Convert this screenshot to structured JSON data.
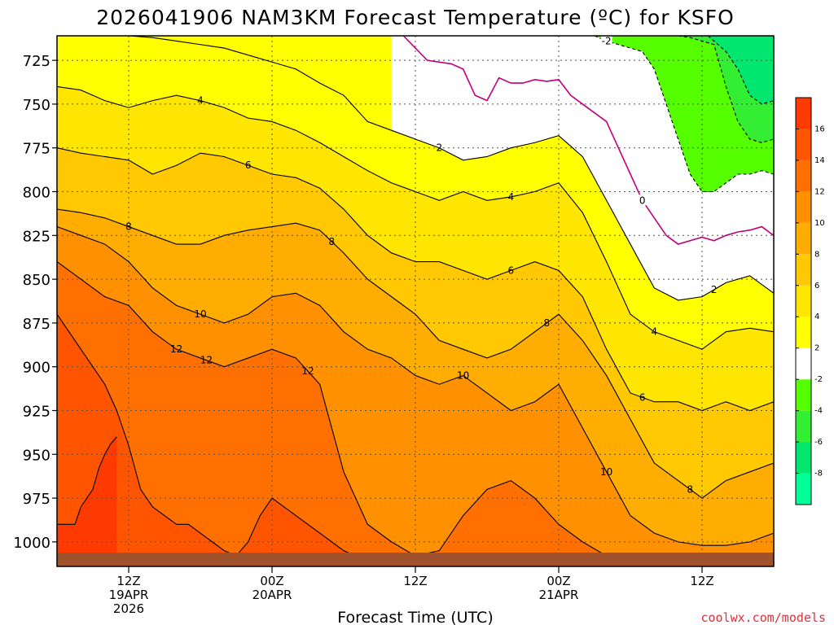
{
  "colors": {
    "band_m8": "#00ff99",
    "band_m6": "#00e66e",
    "band_m4": "#33ee33",
    "band_m2": "#55ff00",
    "band_0": "#ffffff",
    "band_2": "#ffff00",
    "band_4": "#ffe600",
    "band_6": "#ffc800",
    "band_8": "#ffad00",
    "band_10": "#ff9000",
    "band_12": "#ff7000",
    "band_14": "#ff5500",
    "band_16": "#ff3a00",
    "ground": "#a0522d",
    "freezing_line": "#c0007a",
    "credit": "#e0303a"
  },
  "chart_data": {
    "type": "heatmap",
    "title": "2026041906 NAM3KM Forecast Temperature (ºC) for KSFO",
    "xlabel": "Forecast Time (UTC)",
    "ylabel": "",
    "credit": "coolwx.com/models",
    "y_axis": {
      "ticks": [
        "725",
        "750",
        "775",
        "800",
        "825",
        "850",
        "875",
        "900",
        "925",
        "950",
        "975",
        "1000"
      ],
      "range_hpa": [
        711,
        1014
      ],
      "inverted": true
    },
    "x_axis": {
      "range_hours": [
        0,
        60
      ],
      "ticks": [
        {
          "hour": 6,
          "label": "12Z",
          "line2": "19APR",
          "line3": "2026"
        },
        {
          "hour": 18,
          "label": "00Z",
          "line2": "20APR",
          "line3": ""
        },
        {
          "hour": 30,
          "label": "12Z",
          "line2": "",
          "line3": ""
        },
        {
          "hour": 42,
          "label": "00Z",
          "line2": "21APR",
          "line3": ""
        },
        {
          "hour": 54,
          "label": "12Z",
          "line2": "",
          "line3": ""
        }
      ]
    },
    "grid": true,
    "colorbar": {
      "levels": [
        -8,
        -6,
        -4,
        -2,
        2,
        4,
        6,
        8,
        10,
        12,
        14,
        16
      ],
      "tick_labels": [
        "-8",
        "-6",
        "-4",
        "-2",
        "2",
        "4",
        "6",
        "8",
        "10",
        "12",
        "14",
        "16"
      ]
    },
    "contour_labels": [
      "-2",
      "0",
      "2",
      "4",
      "6",
      "8",
      "10",
      "12"
    ],
    "contours": [
      {
        "level": 16,
        "x": [
          0,
          1.5,
          2,
          3,
          3.5,
          4,
          4.5,
          5
        ],
        "y": [
          990,
          990,
          980,
          970,
          958,
          950,
          944,
          940
        ]
      },
      {
        "level": 14,
        "x": [
          0,
          1,
          2,
          3,
          4,
          5,
          6,
          7,
          8,
          9,
          10,
          11,
          12,
          13,
          14,
          15,
          16,
          17,
          18,
          19,
          20,
          21,
          22,
          23,
          24,
          25
        ],
        "y": [
          870,
          880,
          890,
          900,
          910,
          925,
          945,
          970,
          980,
          985,
          990,
          990,
          995,
          1000,
          1005,
          1008,
          1000,
          985,
          975,
          980,
          985,
          990,
          995,
          1000,
          1005,
          1008
        ]
      },
      {
        "level": 12,
        "x": [
          0,
          2,
          4,
          6,
          8,
          10,
          12,
          14,
          16,
          18,
          20,
          22,
          24,
          26,
          28,
          30,
          32,
          34,
          36,
          38,
          40,
          42,
          44,
          46,
          48,
          50,
          52,
          54,
          56,
          58,
          60
        ],
        "y": [
          840,
          850,
          860,
          865,
          880,
          890,
          895,
          900,
          895,
          890,
          895,
          910,
          960,
          990,
          1000,
          1008,
          1005,
          985,
          970,
          965,
          975,
          990,
          1000,
          1008,
          1008,
          1008,
          1008,
          1008,
          1008,
          1008,
          1008
        ]
      },
      {
        "level": 10,
        "x": [
          0,
          2,
          4,
          6,
          8,
          10,
          12,
          14,
          16,
          18,
          20,
          22,
          24,
          26,
          28,
          30,
          32,
          34,
          36,
          38,
          40,
          42,
          44,
          46,
          48,
          50,
          52,
          54,
          56,
          58,
          60
        ],
        "y": [
          820,
          825,
          830,
          840,
          855,
          865,
          870,
          875,
          870,
          860,
          858,
          865,
          880,
          890,
          895,
          905,
          910,
          905,
          915,
          925,
          920,
          910,
          935,
          960,
          985,
          995,
          1000,
          1002,
          1002,
          1000,
          995
        ]
      },
      {
        "level": 8,
        "x": [
          0,
          2,
          4,
          6,
          8,
          10,
          12,
          14,
          16,
          18,
          20,
          22,
          24,
          26,
          28,
          30,
          32,
          34,
          36,
          38,
          40,
          42,
          44,
          46,
          48,
          50,
          52,
          54,
          56,
          58,
          60
        ],
        "y": [
          810,
          812,
          815,
          820,
          825,
          830,
          830,
          825,
          822,
          820,
          818,
          822,
          835,
          850,
          860,
          870,
          885,
          890,
          895,
          890,
          880,
          870,
          885,
          905,
          930,
          955,
          965,
          975,
          965,
          960,
          955
        ]
      },
      {
        "level": 6,
        "x": [
          0,
          2,
          4,
          6,
          8,
          10,
          12,
          14,
          16,
          18,
          20,
          22,
          24,
          26,
          28,
          30,
          32,
          34,
          36,
          38,
          40,
          42,
          44,
          46,
          48,
          50,
          52,
          54,
          56,
          58,
          60
        ],
        "y": [
          775,
          778,
          780,
          782,
          790,
          785,
          778,
          780,
          785,
          790,
          792,
          798,
          810,
          825,
          835,
          840,
          840,
          845,
          850,
          845,
          840,
          845,
          860,
          890,
          915,
          920,
          920,
          925,
          920,
          925,
          920
        ]
      },
      {
        "level": 4,
        "x": [
          0,
          2,
          4,
          6,
          8,
          10,
          12,
          14,
          16,
          18,
          20,
          22,
          24,
          26,
          28,
          30,
          32,
          34,
          36,
          38,
          40,
          42,
          44,
          46,
          48,
          50,
          52,
          54,
          56,
          58,
          60
        ],
        "y": [
          740,
          742,
          748,
          752,
          748,
          745,
          748,
          752,
          758,
          760,
          765,
          772,
          780,
          788,
          795,
          800,
          805,
          800,
          805,
          803,
          800,
          795,
          812,
          840,
          870,
          880,
          885,
          890,
          880,
          878,
          880
        ]
      },
      {
        "level": 2,
        "x": [
          0,
          2,
          4,
          6,
          8,
          10,
          12,
          14,
          16,
          18,
          20,
          22,
          24,
          26,
          28,
          30,
          32,
          34,
          36,
          38,
          40,
          42,
          44,
          46,
          48,
          50,
          52,
          54,
          56,
          58,
          60
        ],
        "y": [
          711,
          711,
          711,
          711,
          712,
          714,
          716,
          718,
          722,
          726,
          730,
          738,
          745,
          760,
          765,
          770,
          775,
          782,
          780,
          775,
          772,
          768,
          780,
          805,
          830,
          855,
          862,
          860,
          852,
          848,
          858
        ]
      },
      {
        "level": 0,
        "x": [
          29,
          30,
          31,
          32,
          33,
          34,
          35,
          36,
          37,
          38,
          39,
          40,
          41,
          42,
          43,
          44,
          45,
          46,
          47,
          48,
          49,
          50,
          51,
          52,
          53,
          54,
          55,
          56,
          57,
          58,
          59,
          60
        ],
        "y": [
          711,
          718,
          725,
          726,
          727,
          730,
          745,
          748,
          735,
          738,
          738,
          736,
          737,
          736,
          745,
          750,
          755,
          760,
          775,
          790,
          805,
          815,
          825,
          830,
          828,
          826,
          828,
          825,
          823,
          822,
          820,
          825
        ]
      },
      {
        "level": -2,
        "x": [
          45,
          46,
          47,
          48,
          49,
          50,
          51,
          52,
          53,
          54,
          55,
          56,
          57,
          58,
          59,
          60
        ],
        "y": [
          711,
          714,
          716,
          718,
          720,
          730,
          750,
          770,
          790,
          800,
          800,
          795,
          790,
          790,
          788,
          790
        ]
      },
      {
        "level": -4,
        "x": [
          52,
          53,
          54,
          55,
          56,
          57,
          58,
          59,
          60
        ],
        "y": [
          711,
          712,
          714,
          716,
          740,
          760,
          770,
          772,
          770
        ]
      },
      {
        "level": -6,
        "x": [
          54.5,
          55,
          56,
          57,
          58,
          59,
          60
        ],
        "y": [
          711,
          714,
          720,
          730,
          745,
          750,
          748
        ]
      }
    ]
  }
}
